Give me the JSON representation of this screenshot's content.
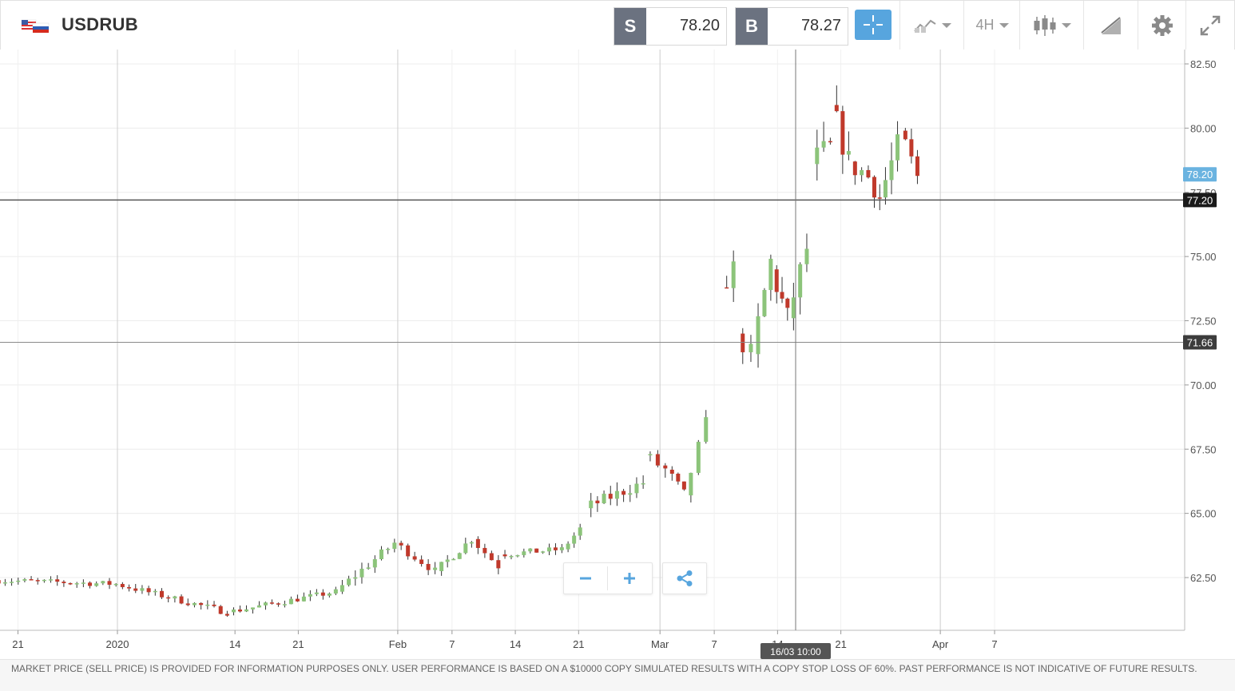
{
  "header": {
    "symbol": "USDRUB",
    "sell_tag": "S",
    "sell_price": "78.20",
    "buy_tag": "B",
    "buy_price": "78.27",
    "timeframe": "4H",
    "icons": {
      "flag": "us-ru-flag-icon",
      "crosshair": "crosshair-icon",
      "chart_type": "line-chart-icon",
      "candles": "candlestick-icon",
      "drawing": "drawing-tools-icon",
      "settings": "gear-icon",
      "fullscreen": "expand-icon"
    }
  },
  "colors": {
    "up": "#8cc47a",
    "down": "#c0392b",
    "accent": "#57a5de",
    "current_price_tag": "#6ab3e0",
    "line_tag": "#1a1a1a",
    "line_tag_gray": "#3c3c3c"
  },
  "chart_data": {
    "type": "candlestick",
    "y_ticks": [
      "62.50",
      "65.00",
      "67.50",
      "70.00",
      "72.50",
      "75.00",
      "77.50",
      "80.00",
      "82.50"
    ],
    "ylim": [
      60.3,
      83.0
    ],
    "x_ticks": [
      {
        "label": "21",
        "day": -11
      },
      {
        "label": "2020",
        "day": 0
      },
      {
        "label": "14",
        "day": 13
      },
      {
        "label": "21",
        "day": 20
      },
      {
        "label": "Feb",
        "day": 31
      },
      {
        "label": "7",
        "day": 37
      },
      {
        "label": "14",
        "day": 44
      },
      {
        "label": "21",
        "day": 51
      },
      {
        "label": "Mar",
        "day": 60
      },
      {
        "label": "7",
        "day": 66
      },
      {
        "label": "14",
        "day": 73
      },
      {
        "label": "21",
        "day": 80
      },
      {
        "label": "Apr",
        "day": 91
      },
      {
        "label": "7",
        "day": 97
      }
    ],
    "vertical_grid_days": [
      0,
      31,
      60,
      91
    ],
    "current_price": "78.20",
    "horizontal_lines": [
      {
        "value": "77.20"
      },
      {
        "value": "71.66"
      }
    ],
    "crosshair_label": "16/03 10:00",
    "crosshair_day": 75,
    "segments": [
      {
        "day_start": -13.5,
        "day_end": 0.2,
        "open": 62.4,
        "close": 62.25,
        "noise": 0.11
      },
      {
        "day_start": 0.2,
        "day_end": 12.5,
        "open": 62.25,
        "close": 61.15,
        "noise": 0.12
      },
      {
        "day_start": 12.5,
        "day_end": 24.5,
        "open": 61.15,
        "close": 61.95,
        "noise": 0.11
      },
      {
        "day_start": 24.5,
        "day_end": 31.0,
        "open": 61.95,
        "close": 63.85,
        "noise": 0.17
      },
      {
        "day_start": 31.0,
        "day_end": 35.5,
        "open": 63.85,
        "close": 62.75,
        "noise": 0.15
      },
      {
        "day_start": 35.5,
        "day_end": 39.5,
        "open": 62.75,
        "close": 64.0,
        "noise": 0.15
      },
      {
        "day_start": 39.5,
        "day_end": 42.5,
        "open": 64.0,
        "close": 62.95,
        "noise": 0.15
      },
      {
        "day_start": 42.5,
        "day_end": 49.5,
        "open": 63.4,
        "close": 63.6,
        "noise": 0.12
      },
      {
        "day_start": 49.5,
        "day_end": 51.5,
        "open": 63.6,
        "close": 64.4,
        "noise": 0.14
      },
      {
        "day_start": 52.0,
        "day_end": 58.5,
        "open": 65.2,
        "close": 66.2,
        "noise": 0.22
      },
      {
        "day_start": 58.5,
        "day_end": 61.0,
        "open": 67.3,
        "close": 66.7,
        "noise": 0.25
      },
      {
        "day_start": 61.0,
        "day_end": 63.0,
        "open": 66.7,
        "close": 65.7,
        "noise": 0.25
      },
      {
        "day_start": 63.0,
        "day_end": 65.5,
        "open": 65.7,
        "close": 68.5,
        "noise": 0.25
      },
      {
        "day_start": 67.0,
        "day_end": 68.5,
        "open": 73.8,
        "close": 74.5,
        "noise": 0.45
      },
      {
        "day_start": 68.7,
        "day_end": 70.5,
        "open": 72.0,
        "close": 71.2,
        "noise": 0.4
      },
      {
        "day_start": 70.5,
        "day_end": 72.6,
        "open": 71.2,
        "close": 74.8,
        "noise": 0.45
      },
      {
        "day_start": 72.6,
        "day_end": 74.4,
        "open": 74.5,
        "close": 72.6,
        "noise": 0.45
      },
      {
        "day_start": 74.4,
        "day_end": 76.6,
        "open": 72.6,
        "close": 75.3,
        "noise": 0.45
      },
      {
        "day_start": 77.0,
        "day_end": 79.2,
        "open": 78.6,
        "close": 79.2,
        "noise": 0.55
      },
      {
        "day_start": 79.2,
        "day_end": 81.2,
        "open": 80.9,
        "close": 78.7,
        "noise": 0.5
      },
      {
        "day_start": 81.2,
        "day_end": 83.4,
        "open": 78.7,
        "close": 78.1,
        "noise": 0.5
      },
      {
        "day_start": 83.4,
        "day_end": 84.6,
        "open": 78.1,
        "close": 77.3,
        "noise": 0.4
      },
      {
        "day_start": 84.6,
        "day_end": 86.6,
        "open": 77.3,
        "close": 79.3,
        "noise": 0.45
      },
      {
        "day_start": 86.8,
        "day_end": 88.8,
        "open": 79.9,
        "close": 78.1,
        "noise": 0.4
      }
    ]
  },
  "zoom": {
    "minus_icon": "zoom-out-icon",
    "plus_icon": "zoom-in-icon",
    "share_icon": "share-icon"
  },
  "footer": {
    "disclaimer": "MARKET PRICE (SELL PRICE) IS PROVIDED FOR INFORMATION PURPOSES ONLY. USER PERFORMANCE IS BASED ON A $10000 COPY SIMULATED RESULTS WITH A COPY STOP LOSS OF 60%. PAST PERFORMANCE IS NOT INDICATIVE OF FUTURE RESULTS."
  }
}
